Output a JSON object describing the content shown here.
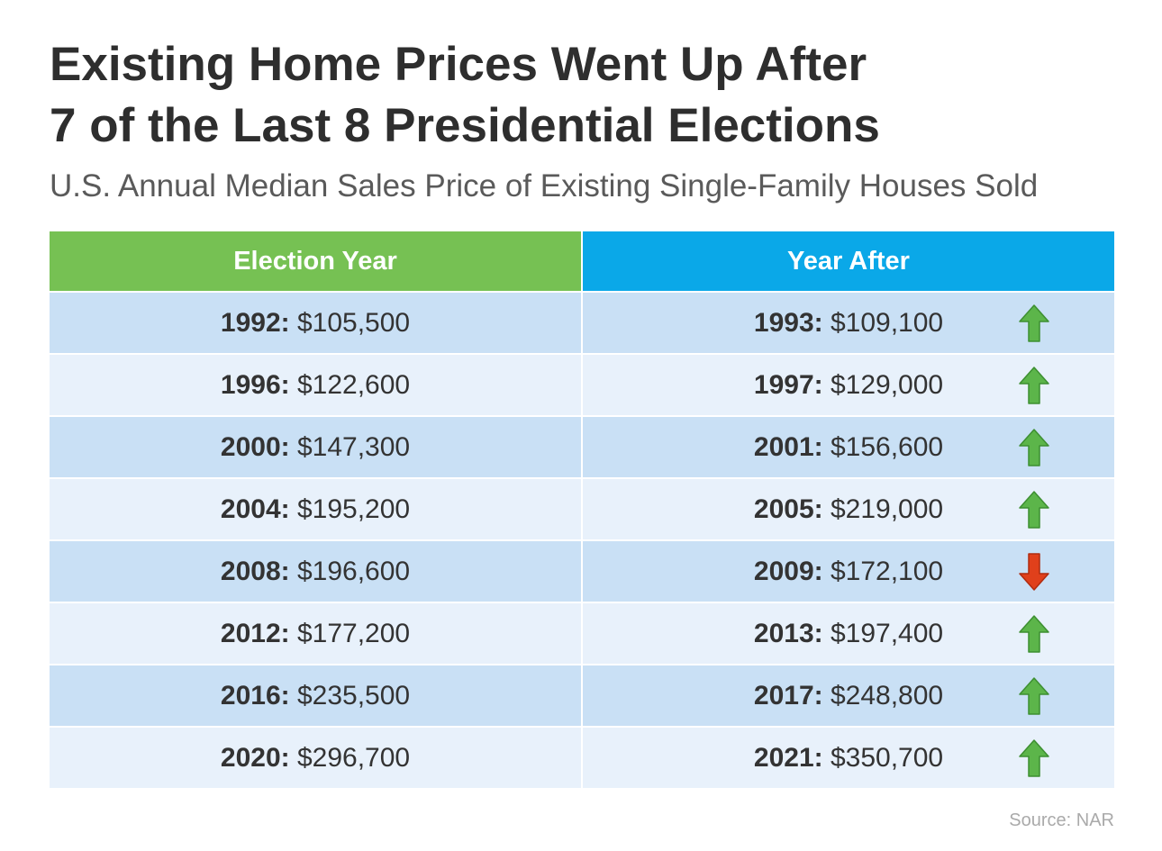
{
  "title_line1": "Existing Home Prices Went Up After",
  "title_line2": "7 of the Last 8 Presidential Elections",
  "subtitle": "U.S. Annual Median Sales Price of Existing Single-Family Houses Sold",
  "source": "Source: NAR",
  "colors": {
    "election_header": "#76c153",
    "after_header": "#0aa8e8",
    "up_arrow": "#5cb54a",
    "down_arrow": "#e0401b"
  },
  "chart_data": {
    "type": "table",
    "title": "Existing Home Prices Went Up After 7 of the Last 8 Presidential Elections",
    "subtitle": "U.S. Annual Median Sales Price of Existing Single-Family Houses Sold",
    "columns": [
      "Election Year",
      "Year After"
    ],
    "rows": [
      {
        "election_year": "1992:",
        "election_price": "$105,500",
        "after_year": "1993:",
        "after_price": "$109,100",
        "direction": "up"
      },
      {
        "election_year": "1996:",
        "election_price": "$122,600",
        "after_year": "1997:",
        "after_price": "$129,000",
        "direction": "up"
      },
      {
        "election_year": "2000:",
        "election_price": "$147,300",
        "after_year": "2001:",
        "after_price": "$156,600",
        "direction": "up"
      },
      {
        "election_year": "2004:",
        "election_price": "$195,200",
        "after_year": "2005:",
        "after_price": "$219,000",
        "direction": "up"
      },
      {
        "election_year": "2008:",
        "election_price": "$196,600",
        "after_year": "2009:",
        "after_price": "$172,100",
        "direction": "down"
      },
      {
        "election_year": "2012:",
        "election_price": "$177,200",
        "after_year": "2013:",
        "after_price": "$197,400",
        "direction": "up"
      },
      {
        "election_year": "2016:",
        "election_price": "$235,500",
        "after_year": "2017:",
        "after_price": "$248,800",
        "direction": "up"
      },
      {
        "election_year": "2020:",
        "election_price": "$296,700",
        "after_year": "2021:",
        "after_price": "$350,700",
        "direction": "up"
      }
    ],
    "source": "Source: NAR"
  }
}
